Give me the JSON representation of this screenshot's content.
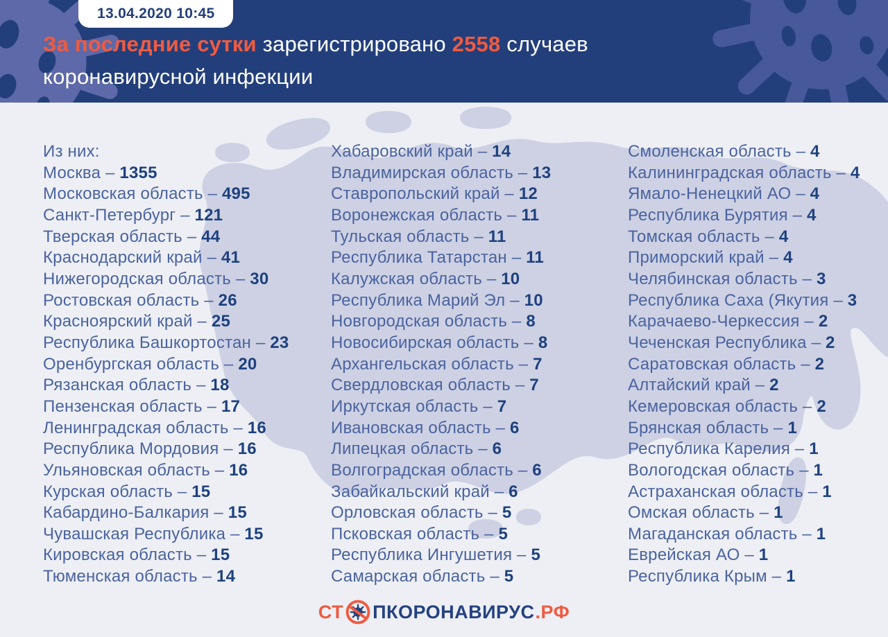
{
  "header": {
    "timestamp": "13.04.2020 10:45",
    "headline": {
      "highlight": "За последние сутки",
      "middle": " зарегистрировано ",
      "count": "2558",
      "after_count": " случаев",
      "line2": "коронавирусной инфекции"
    }
  },
  "colors": {
    "header_bg": "#233F7B",
    "accent_orange": "#EF5B41",
    "body_bg": "#EDEFF4",
    "map_fill": "#CDD1E3",
    "region_text": "#4A63A0",
    "count_text": "#1E417F"
  },
  "list": {
    "intro_label": "Из них:",
    "separator": " – ",
    "columns": [
      {
        "items": [
          {
            "name": "Москва",
            "count": "1355"
          },
          {
            "name": "Московская область",
            "count": "495"
          },
          {
            "name": "Санкт-Петербург",
            "count": "121"
          },
          {
            "name": "Тверская область",
            "count": "44"
          },
          {
            "name": "Краснодарский край",
            "count": "41"
          },
          {
            "name": "Нижегородская область",
            "count": "30"
          },
          {
            "name": "Ростовская область",
            "count": "26"
          },
          {
            "name": "Красноярский край",
            "count": "25"
          },
          {
            "name": "Республика Башкортостан",
            "count": "23"
          },
          {
            "name": "Оренбургская область",
            "count": "20"
          },
          {
            "name": "Рязанская область",
            "count": "18"
          },
          {
            "name": "Пензенская область",
            "count": "17"
          },
          {
            "name": "Ленинградская область",
            "count": "16"
          },
          {
            "name": "Республика Мордовия",
            "count": "16"
          },
          {
            "name": "Ульяновская область",
            "count": "16"
          },
          {
            "name": "Курская область",
            "count": "15"
          },
          {
            "name": "Кабардино-Балкария",
            "count": "15"
          },
          {
            "name": "Чувашская Республика",
            "count": "15"
          },
          {
            "name": "Кировская область",
            "count": "15"
          },
          {
            "name": "Тюменская область",
            "count": "14"
          }
        ]
      },
      {
        "items": [
          {
            "name": "Хабаровский край",
            "count": "14"
          },
          {
            "name": "Владимирская область",
            "count": "13"
          },
          {
            "name": "Ставропольский край",
            "count": "12"
          },
          {
            "name": "Воронежская область",
            "count": "11"
          },
          {
            "name": "Тульская область",
            "count": "11"
          },
          {
            "name": "Республика Татарстан",
            "count": "11"
          },
          {
            "name": "Калужская область",
            "count": "10"
          },
          {
            "name": "Республика Марий Эл",
            "count": "10"
          },
          {
            "name": "Новгородская область",
            "count": "8"
          },
          {
            "name": "Новосибирская область",
            "count": "8"
          },
          {
            "name": "Архангельская область",
            "count": "7"
          },
          {
            "name": "Свердловская область",
            "count": "7"
          },
          {
            "name": "Иркутская область",
            "count": "7"
          },
          {
            "name": "Ивановская область",
            "count": "6"
          },
          {
            "name": "Липецкая область",
            "count": "6"
          },
          {
            "name": "Волгоградская область",
            "count": "6"
          },
          {
            "name": "Забайкальский край",
            "count": "6"
          },
          {
            "name": "Орловская область",
            "count": "5"
          },
          {
            "name": "Псковская область",
            "count": "5"
          },
          {
            "name": "Республика Ингушетия",
            "count": "5"
          },
          {
            "name": "Самарская область",
            "count": "5"
          }
        ]
      },
      {
        "items": [
          {
            "name": "Смоленская область",
            "count": "4"
          },
          {
            "name": "Калининградская область",
            "count": "4"
          },
          {
            "name": "Ямало-Ненецкий АО",
            "count": "4"
          },
          {
            "name": "Республика Бурятия",
            "count": "4"
          },
          {
            "name": "Томская область",
            "count": "4"
          },
          {
            "name": "Приморский край",
            "count": "4"
          },
          {
            "name": "Челябинская область",
            "count": "3"
          },
          {
            "name": "Республика Саха (Якутия",
            "count": "3"
          },
          {
            "name": "Карачаево-Черкессия",
            "count": "2"
          },
          {
            "name": "Чеченская Республика",
            "count": "2"
          },
          {
            "name": "Саратовская область",
            "count": "2"
          },
          {
            "name": "Алтайский край",
            "count": "2"
          },
          {
            "name": "Кемеровская область",
            "count": "2"
          },
          {
            "name": "Брянская область",
            "count": "1"
          },
          {
            "name": "Республика Карелия",
            "count": "1"
          },
          {
            "name": "Вологодская область",
            "count": "1"
          },
          {
            "name": "Астраханская область",
            "count": "1"
          },
          {
            "name": "Омская область",
            "count": "1"
          },
          {
            "name": "Магаданская область",
            "count": "1"
          },
          {
            "name": "Еврейская АО",
            "count": "1"
          },
          {
            "name": "Республика Крым",
            "count": "1"
          }
        ]
      }
    ]
  },
  "footer": {
    "logo": {
      "prefix": "СТ",
      "middle": "ПКОРОНАВИРУС",
      "suffix": ".РФ"
    }
  }
}
